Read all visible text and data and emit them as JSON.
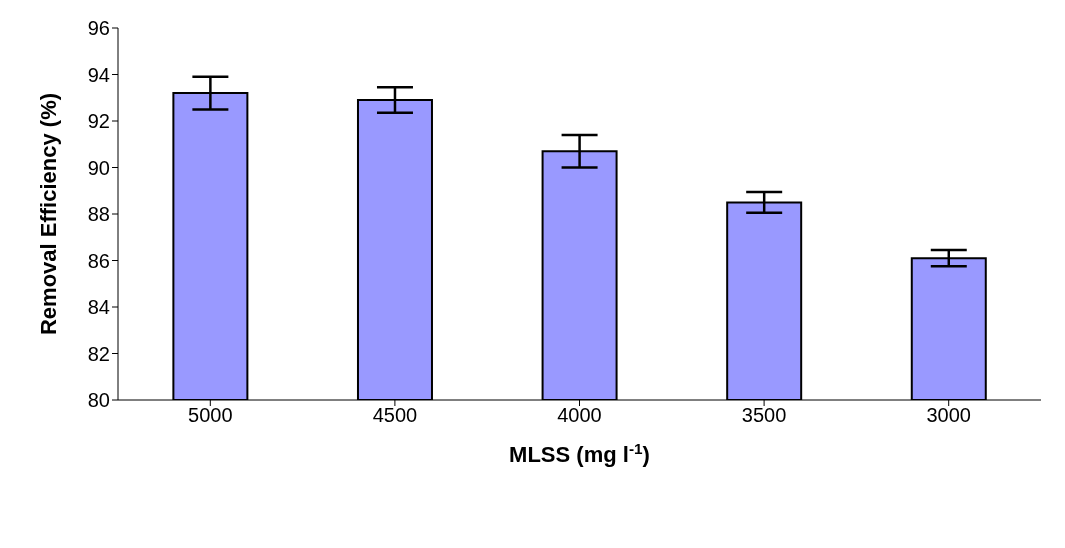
{
  "chart_data": {
    "type": "bar",
    "xlabel": "MLSS (mg l$^{-1}$)",
    "ylabel": "Removal Efficiency (%)",
    "categories": [
      "5000",
      "4500",
      "4000",
      "3500",
      "3000"
    ],
    "values": [
      93.2,
      92.9,
      90.7,
      88.5,
      86.1
    ],
    "errors": [
      0.7,
      0.55,
      0.7,
      0.45,
      0.35
    ],
    "color": "#9999ff",
    "ylim": [
      80,
      96
    ],
    "yticks": [
      80,
      82,
      84,
      86,
      88,
      90,
      92,
      94,
      96
    ],
    "grid": false,
    "legend": false
  }
}
